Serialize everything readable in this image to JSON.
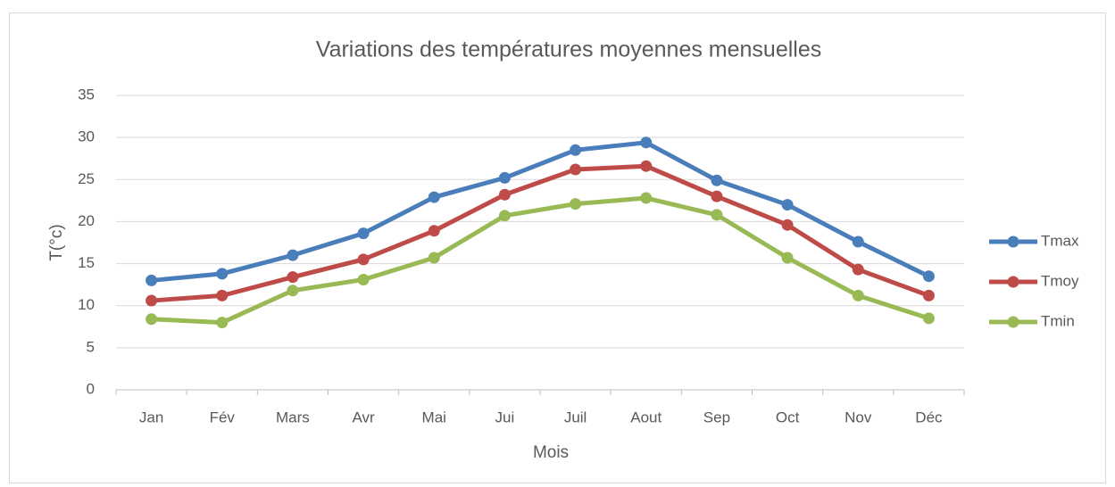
{
  "chart_data": {
    "type": "line",
    "title": "Variations des températures moyennes mensuelles",
    "x_label": "Mois",
    "y_label": "T(°c)",
    "categories": [
      "Jan",
      "Fév",
      "Mars",
      "Avr",
      "Mai",
      "Jui",
      "Juil",
      "Aout",
      "Sep",
      "Oct",
      "Nov",
      "Déc"
    ],
    "series": [
      {
        "name": "Tmax",
        "color": "#4a7ebb",
        "values": [
          13.0,
          13.8,
          16.0,
          18.6,
          22.9,
          25.2,
          28.5,
          29.4,
          24.9,
          22.0,
          17.6,
          13.5
        ]
      },
      {
        "name": "Tmoy",
        "color": "#be4b48",
        "values": [
          10.6,
          11.2,
          13.4,
          15.5,
          18.9,
          23.2,
          26.2,
          26.6,
          23.0,
          19.6,
          14.3,
          11.2
        ]
      },
      {
        "name": "Tmin",
        "color": "#98b954",
        "values": [
          8.4,
          8.0,
          11.8,
          13.1,
          15.7,
          20.7,
          22.1,
          22.8,
          20.8,
          15.7,
          11.2,
          8.5
        ]
      }
    ],
    "ylim": [
      0,
      35
    ],
    "yticks": [
      0,
      5,
      10,
      15,
      20,
      25,
      30,
      35
    ],
    "grid": true,
    "legend": "right"
  }
}
